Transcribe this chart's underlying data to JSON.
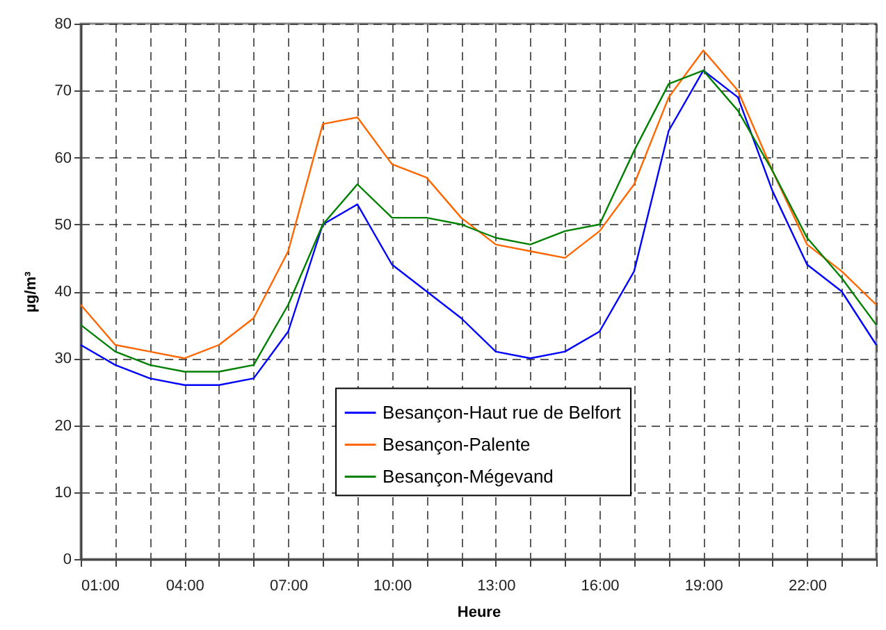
{
  "chart_data": {
    "type": "line",
    "xlabel": "Heure",
    "ylabel": "µg/m³",
    "x": [
      1,
      2,
      3,
      4,
      5,
      6,
      7,
      8,
      9,
      10,
      11,
      12,
      13,
      14,
      15,
      16,
      17,
      18,
      19,
      20,
      21,
      22,
      23,
      24
    ],
    "series": [
      {
        "name": "Besançon-Haut rue de Belfort",
        "color": "#0000ff",
        "values": [
          32,
          29,
          27,
          26,
          26,
          27,
          34,
          50,
          53,
          44,
          40,
          36,
          31,
          30,
          31,
          34,
          43,
          64,
          73,
          69,
          55,
          44,
          40,
          32
        ]
      },
      {
        "name": "Besançon-Palente",
        "color": "#ff6600",
        "values": [
          38,
          32,
          31,
          30,
          32,
          36,
          46,
          65,
          66,
          59,
          57,
          51,
          47,
          46,
          45,
          49,
          56,
          69,
          76,
          70,
          58,
          47,
          43,
          38
        ]
      },
      {
        "name": "Besançon-Mégevand",
        "color": "#008000",
        "values": [
          35,
          31,
          29,
          28,
          28,
          29,
          38,
          50,
          56,
          51,
          51,
          50,
          48,
          47,
          49,
          50,
          61,
          71,
          73,
          67,
          58,
          48,
          42,
          35
        ]
      }
    ],
    "xlim": [
      1,
      24
    ],
    "xticks": [
      {
        "value": 1,
        "label": "01:00"
      },
      {
        "value": 2,
        "label": null
      },
      {
        "value": 3,
        "label": null
      },
      {
        "value": 4,
        "label": "04:00"
      },
      {
        "value": 5,
        "label": null
      },
      {
        "value": 6,
        "label": null
      },
      {
        "value": 7,
        "label": "07:00"
      },
      {
        "value": 8,
        "label": null
      },
      {
        "value": 9,
        "label": null
      },
      {
        "value": 10,
        "label": "10:00"
      },
      {
        "value": 11,
        "label": null
      },
      {
        "value": 12,
        "label": null
      },
      {
        "value": 13,
        "label": "13:00"
      },
      {
        "value": 14,
        "label": null
      },
      {
        "value": 15,
        "label": null
      },
      {
        "value": 16,
        "label": "16:00"
      },
      {
        "value": 17,
        "label": null
      },
      {
        "value": 18,
        "label": null
      },
      {
        "value": 19,
        "label": "19:00"
      },
      {
        "value": 20,
        "label": null
      },
      {
        "value": 21,
        "label": null
      },
      {
        "value": 22,
        "label": "22:00"
      },
      {
        "value": 23,
        "label": null
      },
      {
        "value": 24,
        "label": null
      }
    ],
    "ylim": [
      0,
      80
    ],
    "yticks": [
      0,
      10,
      20,
      30,
      40,
      50,
      60,
      70,
      80
    ],
    "grid": true,
    "legend": "bottom",
    "marker": "none",
    "line_style": "solid"
  }
}
